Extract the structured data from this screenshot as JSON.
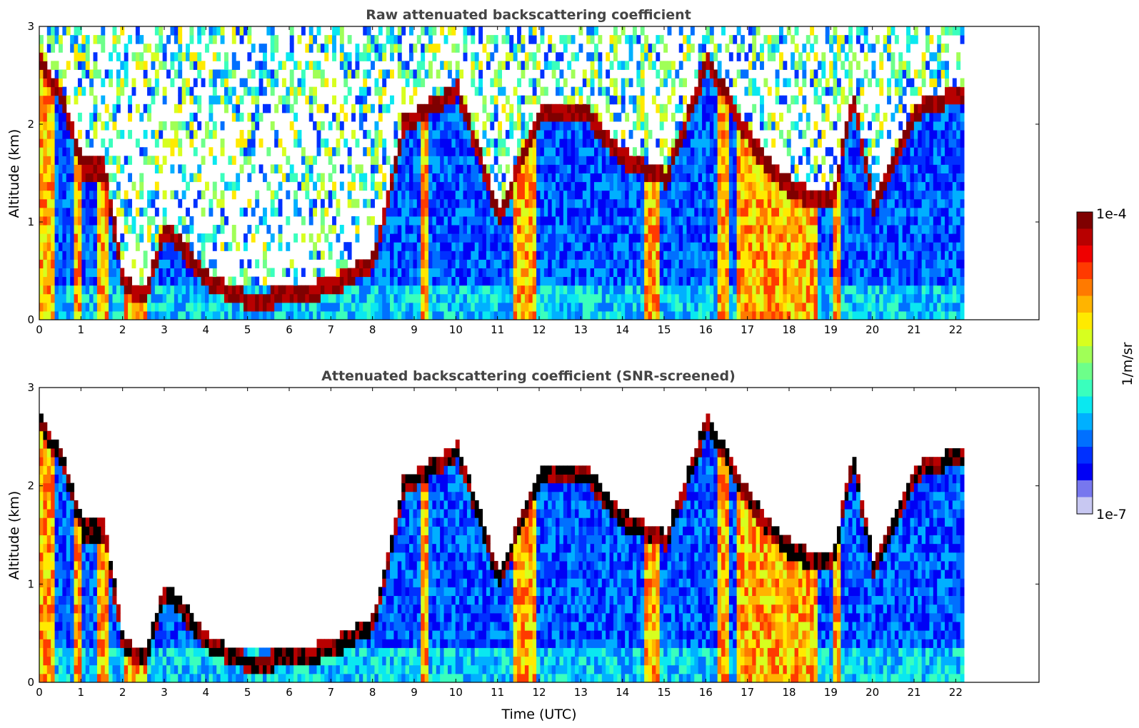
{
  "chart_data": [
    {
      "type": "heatmap",
      "title": "Raw attenuated backscattering coefficient",
      "xlabel": "",
      "ylabel": "Altitude (km)",
      "xlim": [
        0,
        24
      ],
      "ylim": [
        0,
        3
      ],
      "data_extent_hours": [
        0,
        22.2
      ],
      "x_ticks": [
        "0",
        "1",
        "2",
        "3",
        "4",
        "5",
        "6",
        "7",
        "8",
        "9",
        "10",
        "11",
        "12",
        "13",
        "14",
        "15",
        "16",
        "17",
        "18",
        "19",
        "20",
        "21",
        "22"
      ],
      "y_ticks": [
        "0",
        "1",
        "2",
        "3"
      ],
      "colormap": "jet",
      "screened": false,
      "cloud_layer_km": [
        [
          0.0,
          2.6
        ],
        [
          0.5,
          2.2
        ],
        [
          1.0,
          1.5
        ],
        [
          1.5,
          1.5
        ],
        [
          2.0,
          0.3
        ],
        [
          2.5,
          0.2
        ],
        [
          3.0,
          0.9
        ],
        [
          4.0,
          0.35
        ],
        [
          5.0,
          0.15
        ],
        [
          6.0,
          0.2
        ],
        [
          7.0,
          0.3
        ],
        [
          8.0,
          0.55
        ],
        [
          8.7,
          1.95
        ],
        [
          10.0,
          2.3
        ],
        [
          11.0,
          1.0
        ],
        [
          12.0,
          2.1
        ],
        [
          13.0,
          2.1
        ],
        [
          14.0,
          1.6
        ],
        [
          15.0,
          1.4
        ],
        [
          16.0,
          2.6
        ],
        [
          17.0,
          1.8
        ],
        [
          17.5,
          1.5
        ],
        [
          18.0,
          1.3
        ],
        [
          18.5,
          1.2
        ],
        [
          19.0,
          1.2
        ],
        [
          19.5,
          2.2
        ],
        [
          20.0,
          1.1
        ],
        [
          21.0,
          2.1
        ],
        [
          22.0,
          2.25
        ]
      ]
    },
    {
      "type": "heatmap",
      "title": "Attenuated backscattering coefficient (SNR-screened)",
      "xlabel": "Time (UTC)",
      "ylabel": "Altitude (km)",
      "xlim": [
        0,
        24
      ],
      "ylim": [
        0,
        3
      ],
      "data_extent_hours": [
        0,
        22.2
      ],
      "x_ticks": [
        "0",
        "1",
        "2",
        "3",
        "4",
        "5",
        "6",
        "7",
        "8",
        "9",
        "10",
        "11",
        "12",
        "13",
        "14",
        "15",
        "16",
        "17",
        "18",
        "19",
        "20",
        "21",
        "22"
      ],
      "y_ticks": [
        "0",
        "1",
        "2",
        "3"
      ],
      "colormap": "jet",
      "screened": true,
      "cloud_layer_km": [
        [
          0.0,
          2.6
        ],
        [
          0.5,
          2.2
        ],
        [
          1.0,
          1.5
        ],
        [
          1.5,
          1.5
        ],
        [
          2.0,
          0.3
        ],
        [
          2.5,
          0.2
        ],
        [
          3.0,
          0.9
        ],
        [
          4.0,
          0.35
        ],
        [
          5.0,
          0.15
        ],
        [
          6.0,
          0.2
        ],
        [
          7.0,
          0.3
        ],
        [
          8.0,
          0.55
        ],
        [
          8.7,
          1.95
        ],
        [
          10.0,
          2.3
        ],
        [
          11.0,
          1.0
        ],
        [
          12.0,
          2.1
        ],
        [
          13.0,
          2.1
        ],
        [
          14.0,
          1.6
        ],
        [
          15.0,
          1.4
        ],
        [
          16.0,
          2.6
        ],
        [
          17.0,
          1.8
        ],
        [
          17.5,
          1.5
        ],
        [
          18.0,
          1.3
        ],
        [
          18.5,
          1.2
        ],
        [
          19.0,
          1.2
        ],
        [
          19.5,
          2.2
        ],
        [
          20.0,
          1.1
        ],
        [
          21.0,
          2.1
        ],
        [
          22.0,
          2.25
        ]
      ]
    }
  ],
  "colorbar": {
    "label": "1/m/sr",
    "max_label": "1e-4",
    "min_label": "1e-7",
    "colors": [
      "#7f0000",
      "#b80000",
      "#ef0000",
      "#ff3a00",
      "#ff7a00",
      "#ffb400",
      "#ffea00",
      "#d7ff1f",
      "#a0ff57",
      "#6dff8a",
      "#3affbd",
      "#0ae8f0",
      "#00b0ff",
      "#0070ff",
      "#0030ff",
      "#0000f5",
      "#7777ee",
      "#c8c8f2"
    ]
  }
}
